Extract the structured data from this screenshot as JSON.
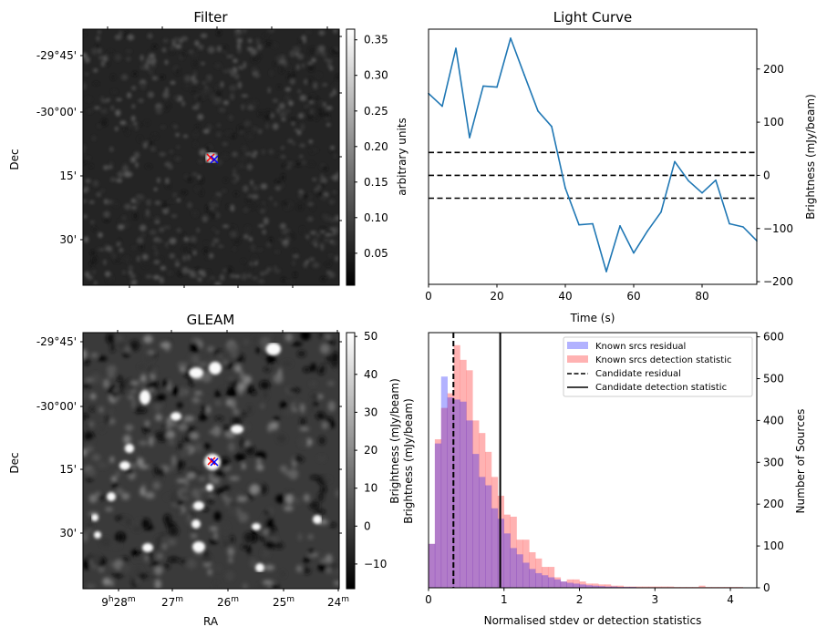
{
  "chart_data": [
    {
      "type": "heatmap",
      "title": "Filter",
      "ylabel": "Dec",
      "xlabel": "",
      "y_tick_labels": [
        "-29°45'",
        "-30°00'",
        "15'",
        "30'"
      ],
      "colorbar": {
        "label": "arbitrary units",
        "ticks": [
          "0.05",
          "0.10",
          "0.15",
          "0.20",
          "0.25",
          "0.30",
          "0.35"
        ],
        "range": [
          0.005,
          0.365
        ],
        "colormap": "gray"
      },
      "markers": [
        {
          "symbol": "x",
          "color": "#ff0000",
          "label": "red cross"
        },
        {
          "symbol": "x",
          "color": "#0000ff",
          "label": "blue cross"
        }
      ]
    },
    {
      "type": "line",
      "title": "Light Curve",
      "xlabel": "Time (s)",
      "ylabel": "Brightness (mJy/beam)",
      "xlim": [
        0,
        96
      ],
      "ylim": [
        -205,
        275
      ],
      "x_ticks": [
        "0",
        "20",
        "40",
        "60",
        "80"
      ],
      "y_ticks": [
        "−200",
        "−100",
        "0",
        "100",
        "200"
      ],
      "series": [
        {
          "name": "light curve",
          "color": "#1f77b4",
          "x": [
            0,
            4,
            8,
            12,
            16,
            20,
            24,
            28,
            32,
            36,
            40,
            44,
            48,
            52,
            56,
            60,
            64,
            68,
            72,
            76,
            80,
            84,
            88,
            92,
            96
          ],
          "y": [
            154,
            130,
            239,
            71,
            168,
            166,
            258,
            189,
            121,
            92,
            -24,
            -93,
            -91,
            -181,
            -95,
            -146,
            -105,
            -69,
            26,
            -10,
            -33,
            -9,
            -91,
            -97,
            -123
          ]
        }
      ],
      "hlines": [
        {
          "y": 43,
          "style": "dashed",
          "color": "#000000"
        },
        {
          "y": 0,
          "style": "dashed",
          "color": "#000000"
        },
        {
          "y": -43,
          "style": "dashed",
          "color": "#000000"
        }
      ]
    },
    {
      "type": "heatmap",
      "title": "GLEAM",
      "xlabel": "RA",
      "ylabel": "Dec",
      "x_tick_labels": [
        {
          "main": "9",
          "sup1": "h",
          "main2": "28",
          "sup2": "m"
        },
        {
          "main": "27",
          "sup1": "m"
        },
        {
          "main": "26",
          "sup1": "m"
        },
        {
          "main": "25",
          "sup1": "m"
        },
        {
          "main": "24",
          "sup1": "m"
        }
      ],
      "y_tick_labels": [
        "-29°45'",
        "-30°00'",
        "15'",
        "30'"
      ],
      "colorbar": {
        "label": "Brightness (mJy/beam)",
        "ticks": [
          "−10",
          "0",
          "10",
          "20",
          "30",
          "40",
          "50"
        ],
        "range": [
          -16.5,
          51
        ],
        "colormap": "gray"
      },
      "markers": [
        {
          "symbol": "x",
          "color": "#ff0000",
          "label": "red cross"
        },
        {
          "symbol": "x",
          "color": "#0000ff",
          "label": "blue cross"
        }
      ]
    },
    {
      "type": "bar",
      "subtype": "histogram",
      "title": "",
      "xlabel": "Normalised stdev or detection statistics",
      "ylabel_left": "Brightness (mJy/beam)",
      "ylabel_right": "Number of Sources",
      "xlim": [
        0,
        4.35
      ],
      "ylim": [
        0,
        610
      ],
      "x_ticks": [
        "0",
        "1",
        "2",
        "3",
        "4"
      ],
      "y_ticks": [
        "0",
        "100",
        "200",
        "300",
        "400",
        "500",
        "600"
      ],
      "bin_width": 0.0833,
      "series": [
        {
          "name": "Known srcs residual",
          "color": "#0000ff",
          "alpha": 0.3,
          "bin_start": 0,
          "values": [
            105,
            345,
            505,
            455,
            450,
            445,
            400,
            320,
            265,
            245,
            190,
            165,
            130,
            95,
            80,
            60,
            45,
            35,
            30,
            25,
            20,
            15,
            12,
            10,
            8,
            6,
            5,
            4,
            3,
            3,
            2,
            2,
            2,
            1,
            1,
            1,
            1,
            0,
            0,
            0
          ]
        },
        {
          "name": "Known srcs detection statistic",
          "color": "#ff0000",
          "alpha": 0.3,
          "bin_start": 0,
          "values": [
            105,
            355,
            430,
            465,
            580,
            545,
            520,
            400,
            370,
            325,
            265,
            220,
            175,
            170,
            115,
            115,
            85,
            70,
            50,
            50,
            25,
            15,
            20,
            20,
            15,
            10,
            10,
            8,
            8,
            5,
            5,
            3,
            3,
            3,
            3,
            3,
            3,
            3,
            3,
            2,
            2,
            2,
            2,
            5,
            2,
            2,
            2,
            2,
            2,
            2
          ]
        }
      ],
      "vlines": [
        {
          "name": "Candidate residual",
          "x": 0.33,
          "style": "dashed",
          "color": "#000000"
        },
        {
          "name": "Candidate detection statistic",
          "x": 0.95,
          "style": "solid",
          "color": "#000000"
        }
      ],
      "legend": {
        "placement": "top-right",
        "entries": [
          "Known srcs residual",
          "Known srcs detection statistic",
          "Candidate residual",
          "Candidate detection statistic"
        ]
      }
    }
  ]
}
